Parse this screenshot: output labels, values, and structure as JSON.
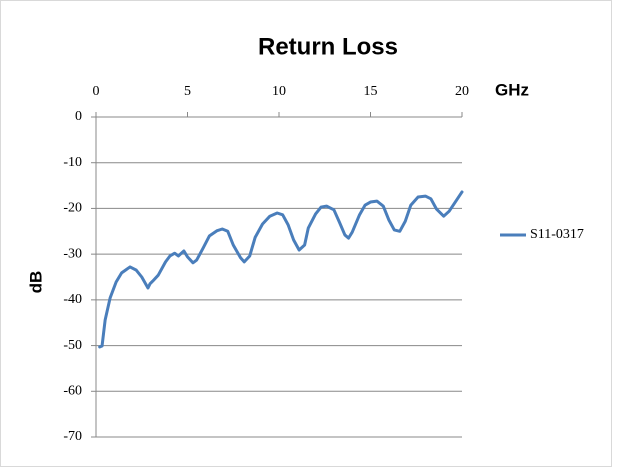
{
  "chart_data": {
    "type": "line",
    "title": "Return Loss",
    "x_label": "GHz",
    "y_label": "dB",
    "xlim": [
      0,
      20
    ],
    "xticks": [
      0,
      5,
      10,
      15,
      20
    ],
    "ylim": [
      -70,
      0
    ],
    "yticks": [
      0,
      -10,
      -20,
      -30,
      -40,
      -50,
      -60,
      -70
    ],
    "grid": true,
    "legend": "right",
    "x": [
      0.2,
      0.33,
      0.5,
      0.77,
      1.1,
      1.4,
      1.86,
      2.2,
      2.5,
      2.84,
      2.95,
      3.1,
      3.4,
      3.8,
      4.04,
      4.3,
      4.5,
      4.8,
      5.0,
      5.3,
      5.5,
      5.85,
      6.2,
      6.6,
      6.9,
      7.2,
      7.5,
      7.9,
      8.1,
      8.4,
      8.7,
      9.1,
      9.5,
      9.9,
      10.2,
      10.5,
      10.8,
      11.1,
      11.4,
      11.6,
      12.0,
      12.3,
      12.6,
      13.0,
      13.3,
      13.6,
      13.8,
      14.0,
      14.4,
      14.7,
      15.0,
      15.35,
      15.7,
      16.0,
      16.3,
      16.6,
      16.9,
      17.2,
      17.6,
      18.0,
      18.3,
      18.6,
      19.0,
      19.3,
      19.7,
      20.0
    ],
    "series": [
      {
        "name": "S11-0317",
        "color": "#4a7ebb",
        "values": [
          -50.3,
          -50.1,
          -44.4,
          -39.6,
          -36.1,
          -34.1,
          -32.8,
          -33.5,
          -35.0,
          -37.4,
          -36.5,
          -35.9,
          -34.6,
          -31.7,
          -30.4,
          -29.8,
          -30.4,
          -29.3,
          -30.6,
          -31.9,
          -31.3,
          -28.7,
          -26.0,
          -24.9,
          -24.5,
          -25.0,
          -28.0,
          -30.8,
          -31.7,
          -30.4,
          -26.3,
          -23.4,
          -21.7,
          -21.0,
          -21.4,
          -23.6,
          -26.9,
          -29.1,
          -28.0,
          -24.3,
          -21.2,
          -19.7,
          -19.5,
          -20.3,
          -23.0,
          -25.8,
          -26.5,
          -25.2,
          -21.4,
          -19.3,
          -18.6,
          -18.4,
          -19.5,
          -22.5,
          -24.7,
          -25.0,
          -22.8,
          -19.3,
          -17.5,
          -17.3,
          -17.9,
          -20.1,
          -21.7,
          -20.6,
          -18.2,
          -16.4
        ]
      }
    ]
  }
}
